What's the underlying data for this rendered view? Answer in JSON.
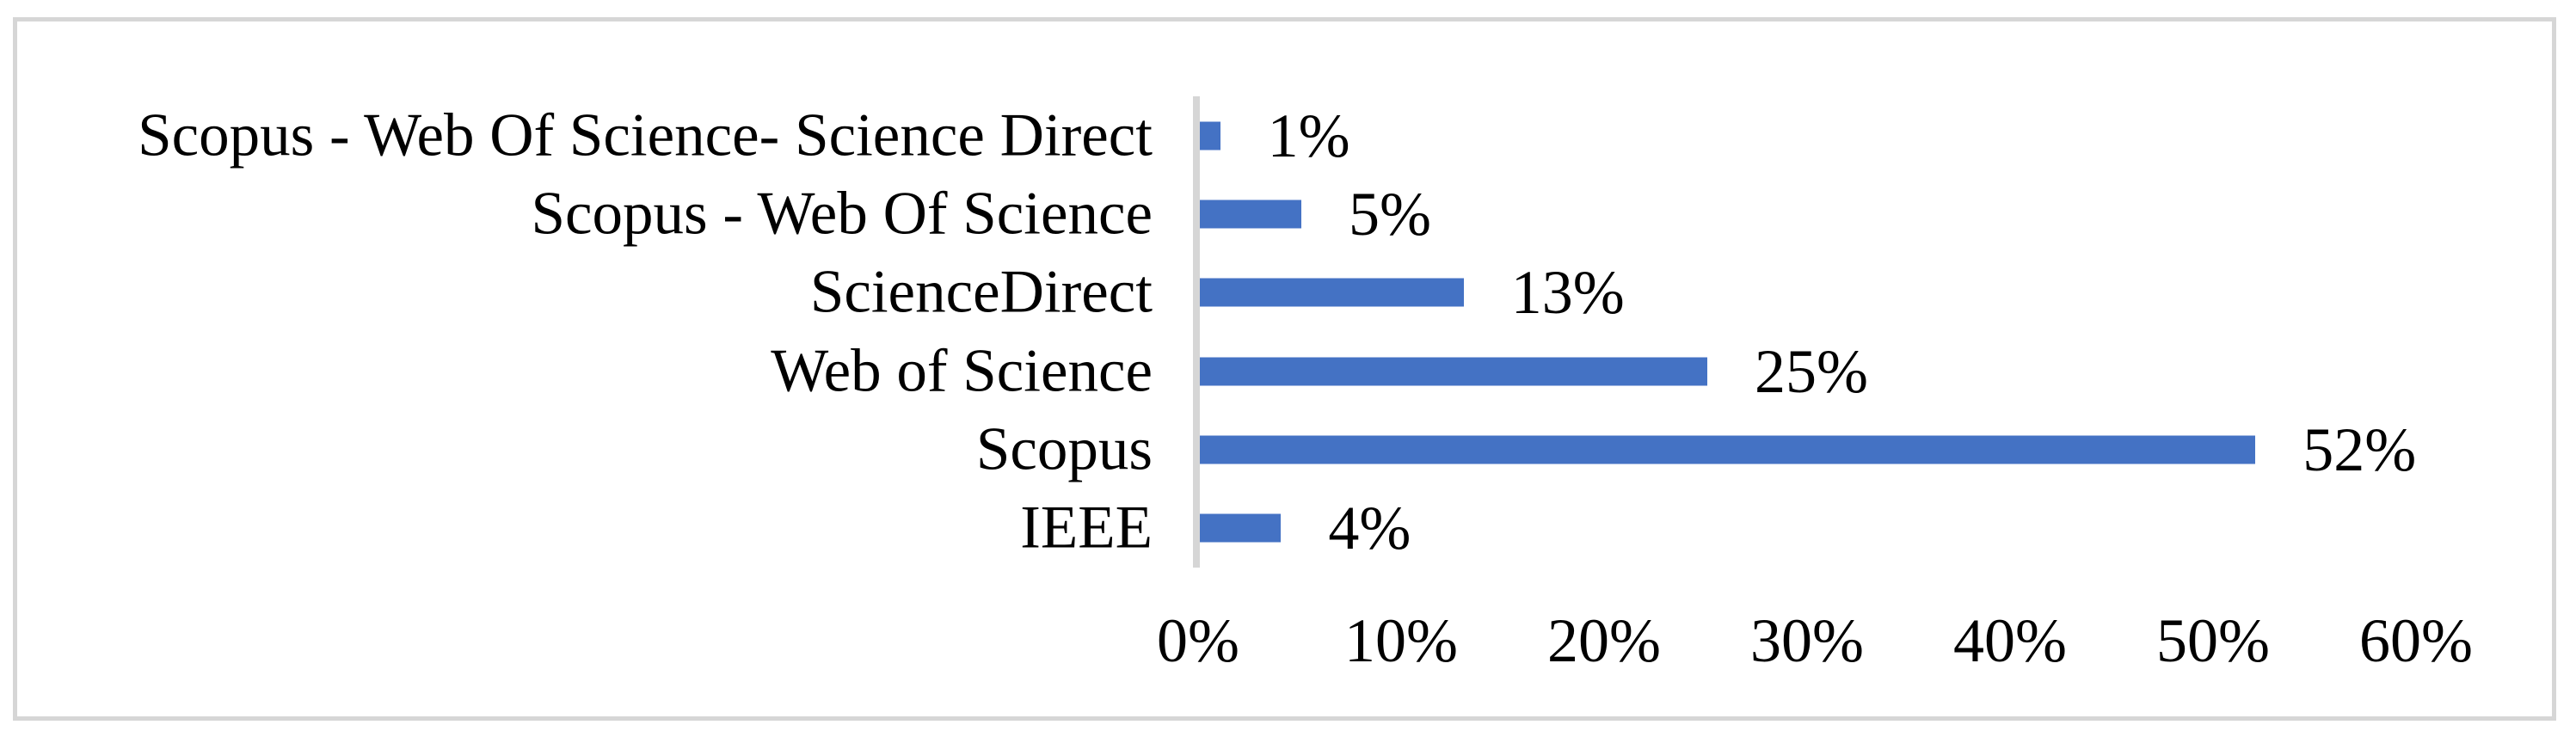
{
  "chart_data": {
    "type": "bar",
    "orientation": "horizontal",
    "title": "",
    "xlabel": "",
    "ylabel": "",
    "categories": [
      "Scopus - Web Of Science- Science Direct",
      "Scopus - Web Of Science",
      "ScienceDirect",
      "Web of Science",
      "Scopus",
      "IEEE"
    ],
    "values": [
      1,
      5,
      13,
      25,
      52,
      4
    ],
    "data_labels": [
      "1%",
      "5%",
      "13%",
      "25%",
      "52%",
      "4%"
    ],
    "x_ticks": [
      {
        "label": "0%",
        "value": 0
      },
      {
        "label": "10%",
        "value": 10
      },
      {
        "label": "20%",
        "value": 20
      },
      {
        "label": "30%",
        "value": 30
      },
      {
        "label": "40%",
        "value": 40
      },
      {
        "label": "50%",
        "value": 50
      },
      {
        "label": "60%",
        "value": 60
      }
    ],
    "xlim": [
      0,
      60
    ],
    "grid": false,
    "legend": "none",
    "colors": {
      "bar": "#4472C4",
      "axis_line": "#d6d6d6",
      "frame_border": "#d6d6d6",
      "text": "#000000",
      "background": "#ffffff"
    }
  }
}
